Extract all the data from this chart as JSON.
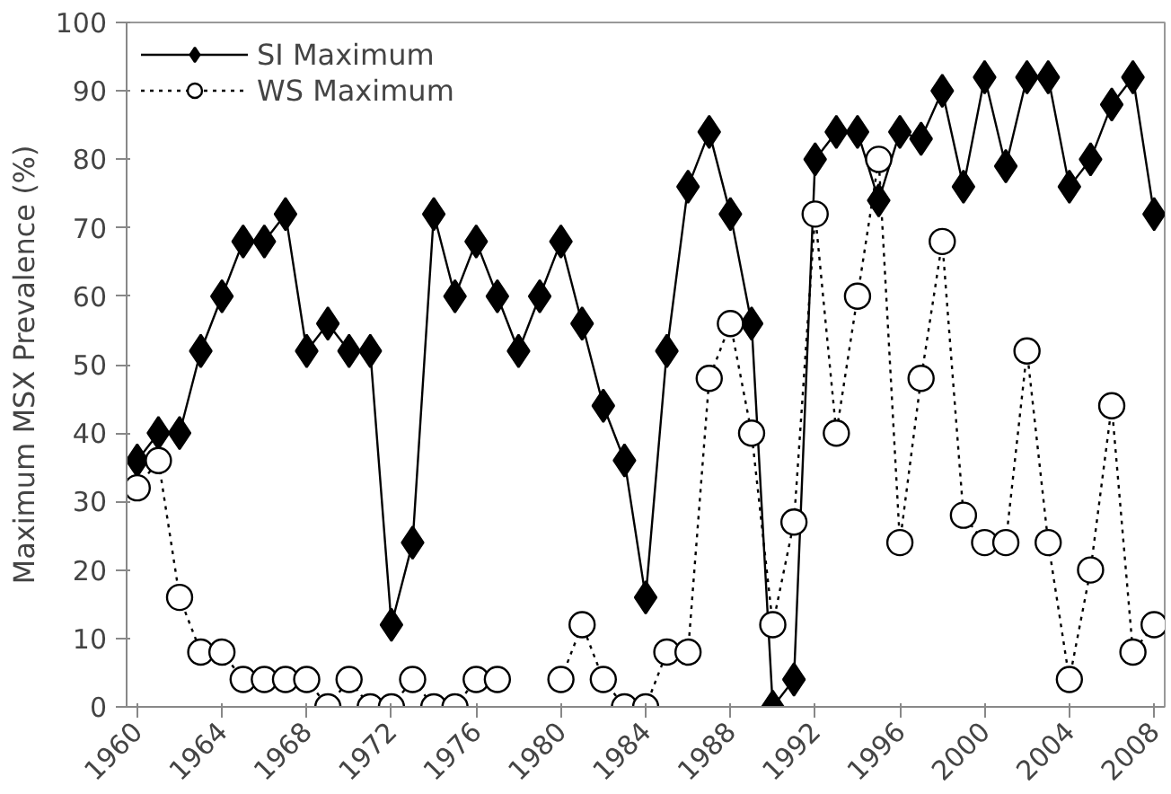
{
  "chart_data": {
    "type": "line",
    "ylabel": "Maximum MSX Prevalence (%)",
    "x": [
      1960,
      1961,
      1962,
      1963,
      1964,
      1965,
      1966,
      1967,
      1968,
      1969,
      1970,
      1971,
      1972,
      1973,
      1974,
      1975,
      1976,
      1977,
      1978,
      1979,
      1980,
      1981,
      1982,
      1983,
      1984,
      1985,
      1986,
      1987,
      1988,
      1989,
      1990,
      1991,
      1992,
      1993,
      1994,
      1995,
      1996,
      1997,
      1998,
      1999,
      2000,
      2001,
      2002,
      2003,
      2004,
      2005,
      2006,
      2007,
      2008
    ],
    "xlim": [
      1959.5,
      2008.5
    ],
    "xticks": [
      1960,
      1964,
      1968,
      1972,
      1976,
      1980,
      1984,
      1988,
      1992,
      1996,
      2000,
      2004,
      2008
    ],
    "ylim": [
      0,
      100
    ],
    "yticks": [
      0,
      10,
      20,
      30,
      40,
      50,
      60,
      70,
      80,
      90,
      100
    ],
    "grid": false,
    "legend": "top left",
    "series": [
      {
        "name": "SI Maximum",
        "color": "#000000",
        "marker": "diamond",
        "line_style": "solid",
        "values": [
          36,
          40,
          40,
          52,
          60,
          68,
          68,
          72,
          52,
          56,
          52,
          52,
          12,
          24,
          72,
          60,
          68,
          60,
          52,
          60,
          68,
          56,
          44,
          36,
          16,
          52,
          76,
          84,
          72,
          56,
          0,
          4,
          80,
          84,
          84,
          74,
          84,
          83,
          90,
          76,
          92,
          79,
          92,
          92,
          76,
          80,
          88,
          92,
          72
        ]
      },
      {
        "name": "WS Maximum",
        "color": "#000000",
        "marker": "circle",
        "line_style": "dotted",
        "values": [
          32,
          36,
          16,
          8,
          8,
          4,
          4,
          4,
          4,
          0,
          4,
          0,
          0,
          4,
          0,
          0,
          4,
          4,
          null,
          null,
          4,
          12,
          4,
          0,
          0,
          8,
          8,
          48,
          56,
          40,
          12,
          27,
          72,
          40,
          60,
          80,
          24,
          48,
          68,
          28,
          24,
          24,
          52,
          24,
          4,
          20,
          44,
          8,
          12
        ]
      }
    ]
  }
}
